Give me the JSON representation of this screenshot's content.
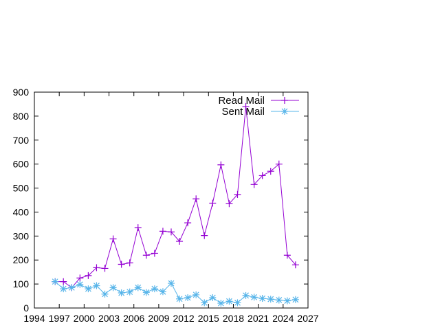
{
  "chart_data": {
    "type": "line",
    "title": "",
    "xlabel": "",
    "ylabel": "",
    "xlim": [
      1994,
      2027
    ],
    "ylim": [
      0,
      900
    ],
    "xticks": [
      1994,
      1997,
      2000,
      2003,
      2006,
      2009,
      2012,
      2015,
      2018,
      2021,
      2024,
      2027
    ],
    "yticks": [
      0,
      100,
      200,
      300,
      400,
      500,
      600,
      700,
      800,
      900
    ],
    "grid": false,
    "legend_position": "top-right",
    "x": [
      1996.5,
      1997.5,
      1998.5,
      1999.5,
      2000.5,
      2001.5,
      2002.5,
      2003.5,
      2004.5,
      2005.5,
      2006.5,
      2007.5,
      2008.5,
      2009.5,
      2010.5,
      2011.5,
      2012.5,
      2013.5,
      2014.5,
      2015.5,
      2016.5,
      2017.5,
      2018.5,
      2019.5,
      2020.5,
      2021.5,
      2022.5,
      2023.5,
      2024.5,
      2025.5
    ],
    "series": [
      {
        "name": "Read Mail",
        "color": "#9400d3",
        "marker": "plus",
        "values": [
          110,
          110,
          85,
          125,
          135,
          168,
          165,
          288,
          182,
          188,
          335,
          220,
          228,
          320,
          317,
          278,
          355,
          455,
          302,
          437,
          597,
          435,
          473,
          840,
          515,
          552,
          570,
          600,
          220,
          180
        ]
      },
      {
        "name": "Sent Mail",
        "color": "#56b4e9",
        "marker": "star",
        "values": [
          110,
          80,
          85,
          98,
          80,
          93,
          58,
          85,
          63,
          67,
          85,
          65,
          80,
          68,
          103,
          38,
          43,
          55,
          22,
          43,
          20,
          28,
          22,
          52,
          45,
          40,
          37,
          33,
          30,
          35
        ]
      }
    ]
  }
}
